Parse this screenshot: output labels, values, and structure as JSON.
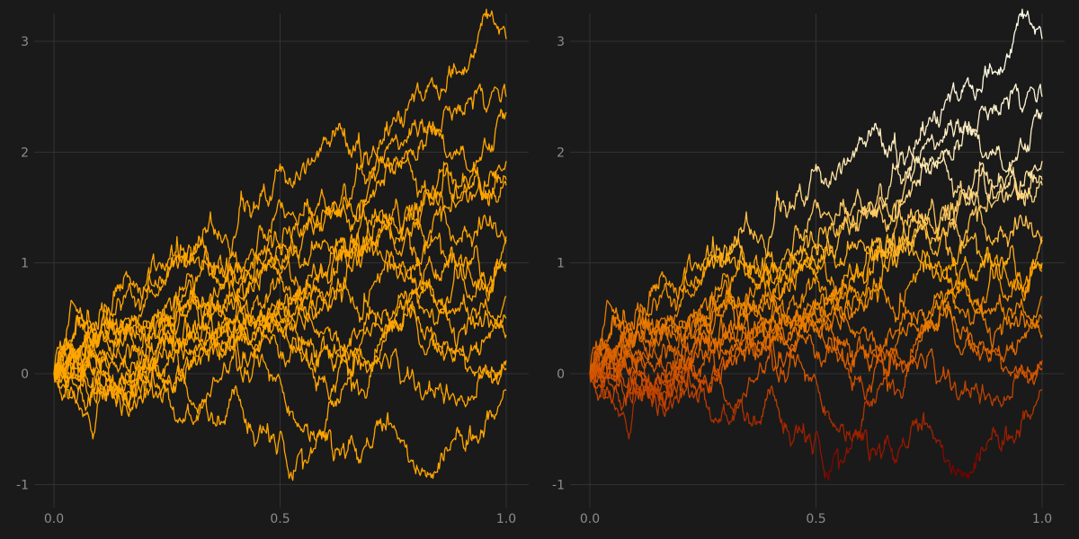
{
  "chart_data": [
    {
      "type": "line",
      "panel": "left",
      "title": "",
      "xlabel": "",
      "ylabel": "",
      "xlim": [
        -0.05,
        1.05
      ],
      "ylim": [
        -1.1,
        3.25
      ],
      "x_ticks": [
        {
          "value": 0.0,
          "label": "0.0"
        },
        {
          "value": 0.5,
          "label": "0.5"
        },
        {
          "value": 1.0,
          "label": "1.0"
        }
      ],
      "y_ticks": [
        {
          "value": -1,
          "label": "-1"
        },
        {
          "value": 0,
          "label": "0"
        },
        {
          "value": 1,
          "label": "1"
        },
        {
          "value": 2,
          "label": "2"
        },
        {
          "value": 3,
          "label": "3"
        }
      ],
      "grid": true,
      "legend": "none",
      "color_mode": "single",
      "color": "#FFA500",
      "x_start": 0.0,
      "x_end": 1.0,
      "series_count": 16,
      "series_endpoints": [
        3.02,
        2.5,
        2.36,
        1.92,
        1.75,
        1.7,
        1.24,
        1.21,
        1.0,
        0.93,
        0.7,
        0.5,
        0.35,
        0.12,
        0.05,
        -0.15
      ]
    },
    {
      "type": "line",
      "panel": "right",
      "title": "",
      "xlabel": "",
      "ylabel": "",
      "xlim": [
        -0.05,
        1.05
      ],
      "ylim": [
        -1.1,
        3.25
      ],
      "x_ticks": [
        {
          "value": 0.0,
          "label": "0.0"
        },
        {
          "value": 0.5,
          "label": "0.5"
        },
        {
          "value": 1.0,
          "label": "1.0"
        }
      ],
      "y_ticks": [
        {
          "value": -1,
          "label": "-1"
        },
        {
          "value": 0,
          "label": "0"
        },
        {
          "value": 1,
          "label": "1"
        },
        {
          "value": 2,
          "label": "2"
        },
        {
          "value": 3,
          "label": "3"
        }
      ],
      "grid": true,
      "legend": "none",
      "color_mode": "by_value",
      "colormap": [
        "#7A0000",
        "#D45500",
        "#FFA500",
        "#FFE8B0",
        "#FFFBE8"
      ],
      "x_start": 0.0,
      "x_end": 1.0,
      "series_count": 16,
      "series_endpoints": [
        3.02,
        2.5,
        2.36,
        1.92,
        1.75,
        1.7,
        1.24,
        1.21,
        1.0,
        0.93,
        0.7,
        0.5,
        0.35,
        0.12,
        0.05,
        -0.15
      ]
    }
  ]
}
